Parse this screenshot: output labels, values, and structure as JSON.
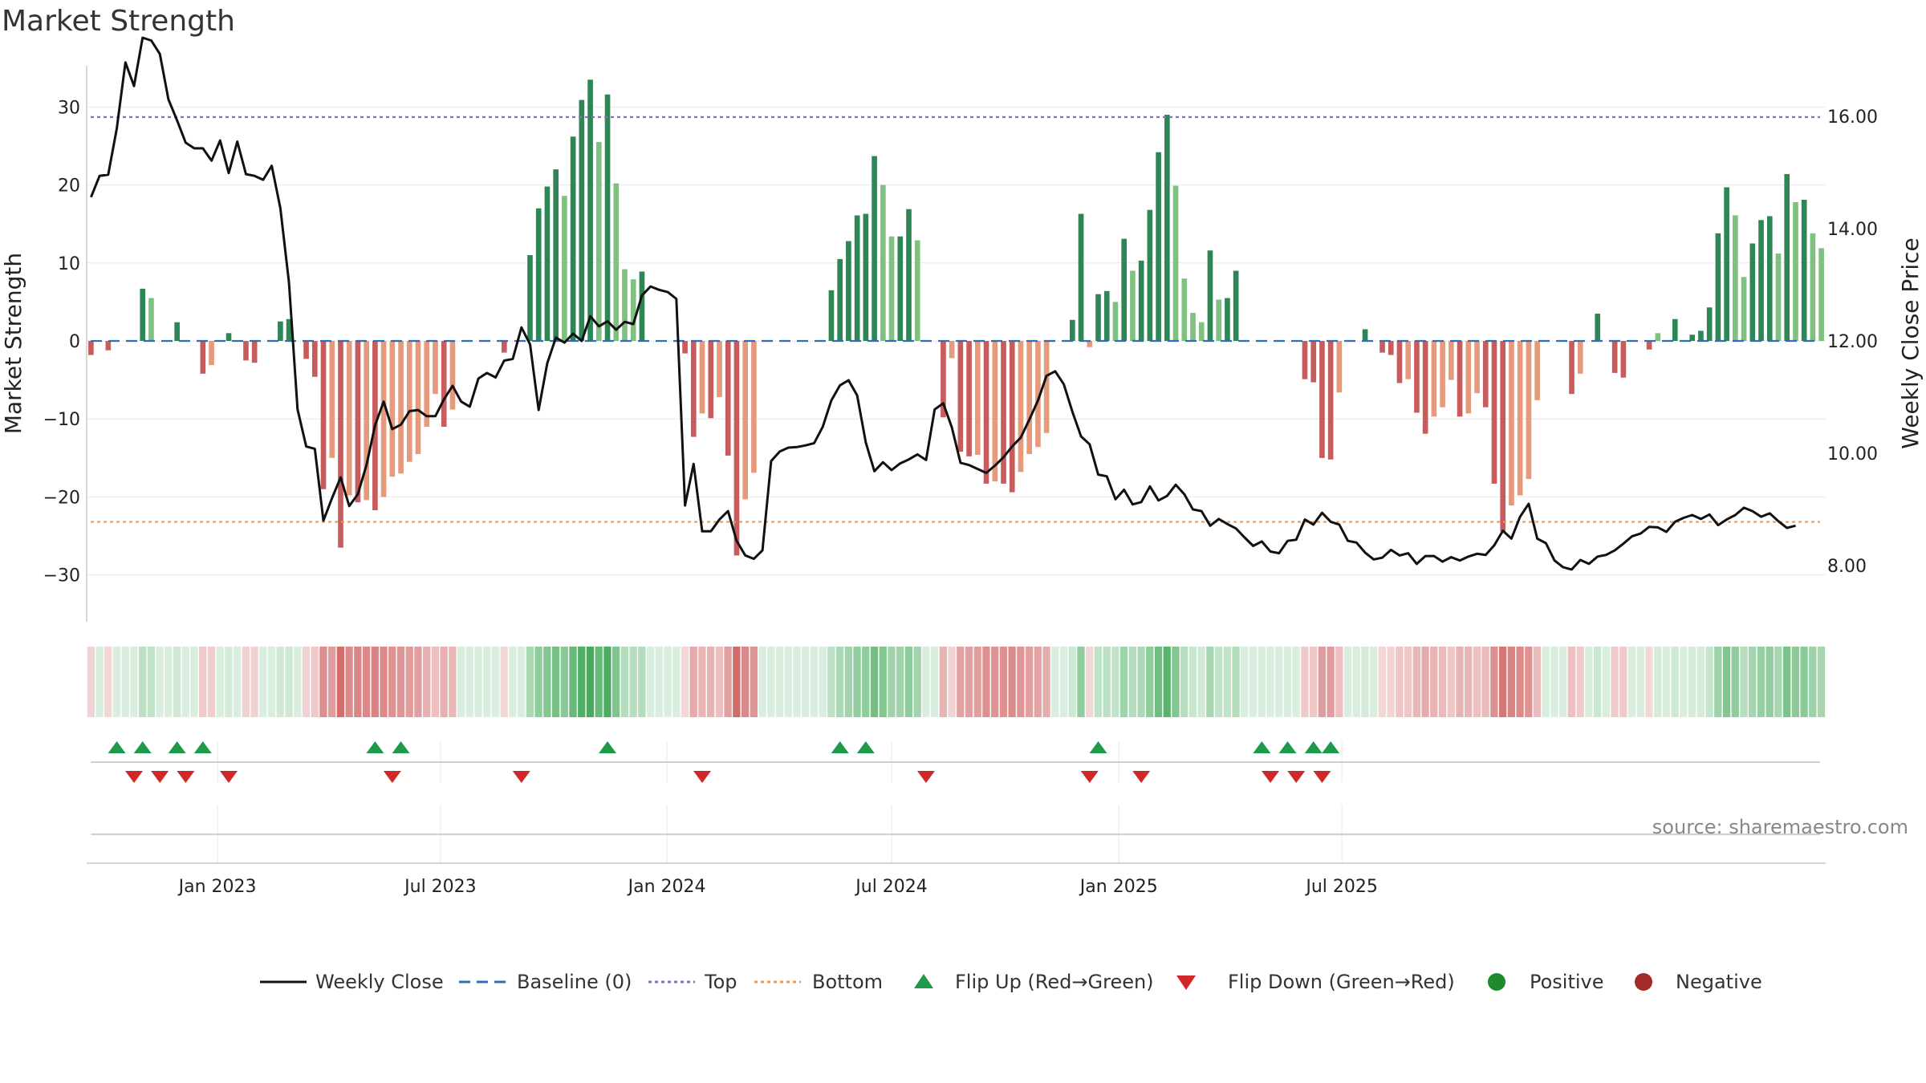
{
  "chart_data": {
    "type": "bar",
    "title": "Market Strength",
    "ylabel": "Market Strength",
    "y2label": "Weekly Close Price",
    "ylim": [
      -36,
      36
    ],
    "y2lim": [
      7.0,
      17.0
    ],
    "yticks": [
      30,
      20,
      10,
      0,
      -10,
      -20,
      -30
    ],
    "ytick_labels": [
      "30",
      "20",
      "10",
      "0",
      "−10",
      "−20",
      "−30"
    ],
    "y2ticks": [
      16,
      14,
      12,
      10,
      8
    ],
    "y2tick_labels": [
      "16.00",
      "14.00",
      "12.00",
      "10.00",
      "8.00"
    ],
    "xticks": [
      {
        "week": 14.7,
        "label": "Jan 2023"
      },
      {
        "week": 40.6,
        "label": "Jul 2023"
      },
      {
        "week": 66.9,
        "label": "Jan 2024"
      },
      {
        "week": 93.0,
        "label": "Jul 2024"
      },
      {
        "week": 119.4,
        "label": "Jan 2025"
      },
      {
        "week": 145.3,
        "label": "Jul 2025"
      }
    ],
    "top_line": 28.7,
    "bottom_line": -23.2,
    "baseline": 0,
    "strength": [
      -1.8,
      0,
      -1.2,
      0,
      0,
      0,
      6.7,
      5.5,
      0,
      0,
      2.4,
      0,
      0,
      -4.2,
      -3.1,
      0,
      1,
      0,
      -2.5,
      -2.8,
      0,
      0,
      2.5,
      2.8,
      0,
      -2.3,
      -4.6,
      -19,
      -15,
      -26.5,
      -19.8,
      -20.7,
      -20.4,
      -21.7,
      -20,
      -17.4,
      -17,
      -15.5,
      -14.5,
      -11,
      -6.8,
      -11,
      -8.8,
      0,
      0,
      0,
      0,
      0,
      -1.5,
      0,
      0,
      11,
      17,
      19.8,
      22,
      18.6,
      26.2,
      30.9,
      33.5,
      25.5,
      31.6,
      20.2,
      9.2,
      7.9,
      8.9,
      0,
      0,
      0,
      0,
      -1.6,
      -12.3,
      -9.3,
      -9.9,
      -7.2,
      -14.7,
      -27.5,
      -20.3,
      -16.9,
      0,
      0,
      0,
      0,
      0,
      0,
      0,
      0,
      6.5,
      10.5,
      12.8,
      16.1,
      16.3,
      23.7,
      20,
      13.4,
      13.4,
      16.9,
      12.9,
      0,
      0,
      -9.8,
      -2.2,
      -14.2,
      -14.8,
      -14.6,
      -18.3,
      -18,
      -18.3,
      -19.4,
      -16.8,
      -14.5,
      -13.6,
      -11.8,
      0,
      0,
      2.7,
      16.3,
      -0.8,
      6,
      6.4,
      5,
      13.1,
      9,
      10.3,
      16.8,
      24.2,
      29,
      19.9,
      8,
      3.6,
      2.4,
      11.6,
      5.3,
      5.5,
      9,
      0,
      0,
      0,
      0,
      0,
      0,
      0,
      -4.9,
      -5.3,
      -15,
      -15.2,
      -6.6,
      0,
      0,
      1.5,
      0,
      -1.5,
      -1.8,
      -5.4,
      -4.9,
      -9.2,
      -11.9,
      -9.7,
      -8.5,
      -5,
      -9.7,
      -9.3,
      -6.7,
      -8.5,
      -18.3,
      -24.4,
      -21.1,
      -19.8,
      -17.7,
      -7.6,
      0,
      0,
      0,
      -6.8,
      -4.2,
      0,
      3.5,
      0,
      -4.1,
      -4.7,
      0,
      0,
      -1.1,
      1,
      0,
      2.8,
      0,
      0.8,
      1.3,
      4.3,
      13.8,
      19.7,
      16.1,
      8.2,
      12.5,
      15.5,
      16,
      11.2,
      21.4,
      17.8,
      18.1,
      13.8,
      11.9
    ],
    "close": [
      14.56,
      14.94,
      14.96,
      15.78,
      16.96,
      16.54,
      17.4,
      17.35,
      17.11,
      16.3,
      15.93,
      15.53,
      15.43,
      15.43,
      15.21,
      15.57,
      14.99,
      15.55,
      14.97,
      14.94,
      14.87,
      15.12,
      14.36,
      13.04,
      10.78,
      10.12,
      10.08,
      8.8,
      9.2,
      9.57,
      9.06,
      9.27,
      9.79,
      10.5,
      10.92,
      10.43,
      10.51,
      10.75,
      10.77,
      10.66,
      10.66,
      10.96,
      11.2,
      10.92,
      10.83,
      11.33,
      11.43,
      11.35,
      11.65,
      11.68,
      12.24,
      11.94,
      10.77,
      11.6,
      12.06,
      11.97,
      12.13,
      12.0,
      12.44,
      12.26,
      12.35,
      12.2,
      12.34,
      12.3,
      12.81,
      12.97,
      12.91,
      12.87,
      12.75,
      9.07,
      9.81,
      8.61,
      8.61,
      8.82,
      8.97,
      8.44,
      8.18,
      8.12,
      8.27,
      9.86,
      10.03,
      10.1,
      10.11,
      10.14,
      10.18,
      10.47,
      10.94,
      11.21,
      11.3,
      11.03,
      10.19,
      9.68,
      9.84,
      9.7,
      9.82,
      9.89,
      9.98,
      9.88,
      10.78,
      10.89,
      10.46,
      9.83,
      9.79,
      9.72,
      9.65,
      9.78,
      9.93,
      10.12,
      10.28,
      10.6,
      10.94,
      11.38,
      11.46,
      11.23,
      10.74,
      10.3,
      10.16,
      9.62,
      9.59,
      9.18,
      9.35,
      9.09,
      9.13,
      9.41,
      9.16,
      9.24,
      9.44,
      9.27,
      9.0,
      8.97,
      8.71,
      8.83,
      8.74,
      8.66,
      8.5,
      8.35,
      8.43,
      8.25,
      8.22,
      8.44,
      8.46,
      8.82,
      8.73,
      8.94,
      8.78,
      8.73,
      8.44,
      8.41,
      8.23,
      8.11,
      8.14,
      8.28,
      8.18,
      8.22,
      8.03,
      8.17,
      8.17,
      8.07,
      8.15,
      8.09,
      8.16,
      8.21,
      8.19,
      8.36,
      8.62,
      8.48,
      8.87,
      9.1,
      8.48,
      8.4,
      8.09,
      7.97,
      7.93,
      8.1,
      8.03,
      8.16,
      8.19,
      8.27,
      8.39,
      8.52,
      8.57,
      8.69,
      8.68,
      8.6,
      8.78,
      8.85,
      8.9,
      8.83,
      8.91,
      8.72,
      8.82,
      8.9,
      9.03,
      8.97,
      8.87,
      8.93,
      8.79,
      8.67,
      8.71
    ],
    "flip_up_weeks": [
      3,
      6,
      10,
      13,
      33,
      36,
      60,
      87,
      90,
      117,
      136,
      139,
      142,
      144
    ],
    "flip_down_weeks": [
      5,
      8,
      11,
      16,
      35,
      50,
      71,
      97,
      116,
      122,
      137,
      140,
      143
    ],
    "legend": [
      "Weekly Close",
      "Baseline (0)",
      "Top",
      "Bottom",
      "Flip Up (Red→Green)",
      "Flip Down (Green→Red)",
      "Positive",
      "Negative"
    ],
    "source": "source: sharemaestro.com",
    "colors": {
      "pos_strong": "#2e8555",
      "pos_light": "#80c080",
      "neg_strong": "#c85c5c",
      "neg_light": "#e69a7c",
      "close_line": "#111111",
      "baseline": "#2e6fb4",
      "top": "#8e6cc4",
      "bottom": "#e69a5c",
      "flip_up": "#1f9a4a",
      "flip_down": "#d02828",
      "positive": "#1e8a2e",
      "negative": "#a42a2a"
    }
  }
}
